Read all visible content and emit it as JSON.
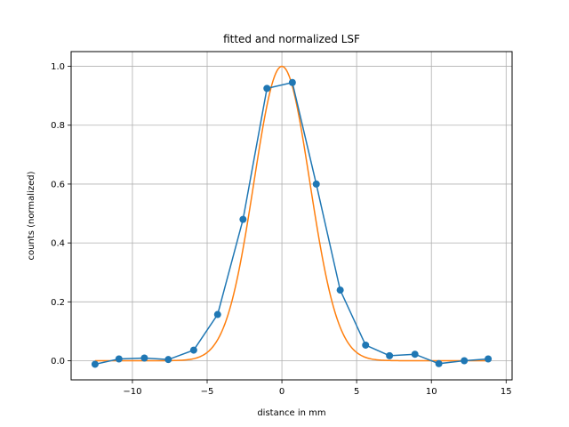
{
  "chart_data": {
    "type": "line",
    "title": "fitted and normalized LSF",
    "xlabel": "distance in mm",
    "ylabel": "counts (normalized)",
    "xlim": [
      -14.1,
      15.4
    ],
    "ylim": [
      -0.065,
      1.05
    ],
    "xticks": [
      -10,
      -5,
      0,
      5,
      10,
      15
    ],
    "yticks": [
      0.0,
      0.2,
      0.4,
      0.6,
      0.8,
      1.0
    ],
    "xtick_labels": [
      "−10",
      "−5",
      "0",
      "5",
      "10",
      "15"
    ],
    "ytick_labels": [
      "0.0",
      "0.2",
      "0.4",
      "0.6",
      "0.8",
      "1.0"
    ],
    "grid": true,
    "series": [
      {
        "kind": "line-markers",
        "color": "#1f77b4",
        "x": [
          -12.5,
          -10.9,
          -9.2,
          -7.6,
          -5.9,
          -4.3,
          -2.6,
          -1.0,
          0.7,
          2.3,
          3.9,
          5.6,
          7.2,
          8.9,
          10.5,
          12.2,
          13.8
        ],
        "y": [
          -0.012,
          0.006,
          0.009,
          0.004,
          0.036,
          0.157,
          0.48,
          0.925,
          0.945,
          0.6,
          0.24,
          0.053,
          0.017,
          0.022,
          -0.01,
          0.0,
          0.006
        ]
      },
      {
        "kind": "gaussian-fit",
        "color": "#ff7f0e",
        "amplitude": 1.0,
        "center": 0.0,
        "sigma": 1.87,
        "x_range": [
          -12.5,
          13.8
        ]
      }
    ]
  }
}
